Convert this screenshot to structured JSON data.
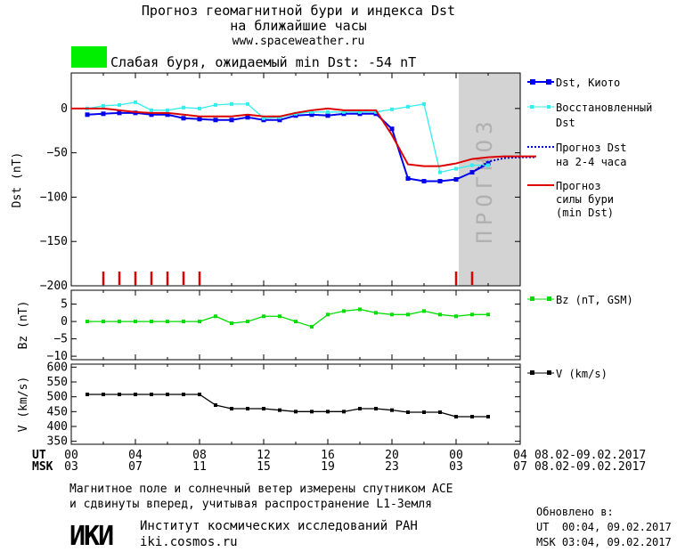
{
  "header": {
    "title_line1": "Прогноз геомагнитной бури и индекса Dst",
    "title_line2": "на ближайшие часы",
    "url": "www.spaceweather.ru",
    "status_text": "Слабая буря, ожидаемый min Dst: -54 nT",
    "status_color": "#00ee00"
  },
  "forecast_band_label": "ПРОГНОЗ",
  "chart_data": [
    {
      "type": "line",
      "ylabel": "Dst (nT)",
      "ylim": [
        -200,
        40
      ],
      "yticks": [
        0,
        -50,
        -100,
        -150,
        -200
      ],
      "series": [
        {
          "name": "Dst, Киото",
          "color": "#0000ee",
          "x": [
            0,
            1,
            2,
            3,
            4,
            5,
            6,
            7,
            8,
            9,
            10,
            11,
            12,
            13,
            14,
            15,
            16,
            17,
            18,
            19,
            20,
            21,
            22,
            23,
            24,
            25
          ],
          "y": [
            -7,
            -6,
            -5,
            -5,
            -7,
            -7,
            -11,
            -12,
            -13,
            -13,
            -10,
            -13,
            -13,
            -8,
            -7,
            -8,
            -6,
            -6,
            -6,
            -23,
            -79,
            -82,
            -82,
            -80,
            -72,
            -62
          ]
        },
        {
          "name": "Восстановленный Dst",
          "color": "#33eeee",
          "x": [
            0,
            1,
            2,
            3,
            4,
            5,
            6,
            7,
            8,
            9,
            10,
            11,
            12,
            13,
            14,
            15,
            16,
            17,
            18,
            19,
            20,
            21,
            22,
            23,
            24,
            25
          ],
          "y": [
            0,
            3,
            4,
            7,
            -2,
            -2,
            1,
            0,
            4,
            5,
            5,
            -11,
            -10,
            -6,
            -4,
            -4,
            -4,
            -4,
            -4,
            -1,
            2,
            5,
            -72,
            -68,
            -64,
            -64
          ]
        },
        {
          "name": "Прогноз Dst на 2-4 часа",
          "color": "#0000cc",
          "dashed": true,
          "x": [
            24,
            25,
            26,
            27,
            28
          ],
          "y": [
            -72,
            -60,
            -56,
            -55,
            -55
          ]
        },
        {
          "name": "Прогноз силы бури (min Dst)",
          "color": "#dd0000",
          "x": [
            -1,
            0,
            1,
            2,
            3,
            4,
            5,
            6,
            7,
            8,
            9,
            10,
            11,
            12,
            13,
            14,
            15,
            16,
            17,
            18,
            19,
            20,
            21,
            22,
            23,
            24,
            25,
            26,
            27,
            28
          ],
          "y": [
            0,
            0,
            0,
            -2,
            -4,
            -5,
            -5,
            -7,
            -9,
            -9,
            -9,
            -7,
            -9,
            -9,
            -5,
            -2,
            0,
            -2,
            -2,
            -2,
            -30,
            -63,
            -65,
            -65,
            -62,
            -57,
            -55,
            -54,
            -54,
            -54
          ]
        }
      ],
      "markers_x": [
        1,
        2,
        3,
        4,
        5,
        6,
        7,
        23,
        24
      ]
    },
    {
      "type": "line",
      "ylabel": "Bz (nT)",
      "ylim": [
        -11,
        9
      ],
      "yticks": [
        5,
        0,
        -5,
        -10
      ],
      "series": [
        {
          "name": "Bz (nT, GSM)",
          "color": "#00dd00",
          "x": [
            0,
            1,
            2,
            3,
            4,
            5,
            6,
            7,
            8,
            9,
            10,
            11,
            12,
            13,
            14,
            15,
            16,
            17,
            18,
            19,
            20,
            21,
            22,
            23,
            24,
            25
          ],
          "y": [
            0,
            0,
            0,
            0,
            0,
            0,
            0,
            0,
            1.5,
            -0.5,
            0,
            1.5,
            1.5,
            0,
            -1.5,
            2,
            3,
            3.5,
            2.5,
            2,
            2,
            3,
            2,
            1.5,
            2,
            2
          ]
        }
      ]
    },
    {
      "type": "line",
      "ylabel": "V (km/s)",
      "ylim": [
        340,
        610
      ],
      "yticks": [
        600,
        550,
        500,
        450,
        400,
        350
      ],
      "series": [
        {
          "name": "V (km/s)",
          "color": "#000000",
          "x": [
            0,
            1,
            2,
            3,
            4,
            5,
            6,
            7,
            8,
            9,
            10,
            11,
            12,
            13,
            14,
            15,
            16,
            17,
            18,
            19,
            20,
            21,
            22,
            23,
            24,
            25
          ],
          "y": [
            508,
            508,
            508,
            508,
            508,
            508,
            508,
            508,
            472,
            460,
            460,
            460,
            455,
            450,
            450,
            450,
            450,
            460,
            460,
            455,
            448,
            448,
            448,
            433,
            433,
            433
          ]
        }
      ]
    }
  ],
  "x_axis": {
    "ut_label": "UT",
    "msk_label": "MSK",
    "ut_ticks": [
      "00",
      "04",
      "08",
      "12",
      "16",
      "20",
      "00",
      "04"
    ],
    "msk_ticks": [
      "03",
      "07",
      "11",
      "15",
      "19",
      "23",
      "03",
      "07"
    ],
    "ut_minor": [
      "02",
      "06",
      "10",
      "14",
      "18",
      "22",
      "02"
    ],
    "date_range_ut": "08.02-09.02.2017",
    "date_range_msk": "08.02-09.02.2017"
  },
  "legend": {
    "dst_kyoto": "Dst, Киото",
    "restored_1": "Восстановленный",
    "restored_2": "Dst",
    "forecast_1": "Прогноз Dst",
    "forecast_2": "на 2-4 часа",
    "storm_1": "Прогноз",
    "storm_2": "силы бури",
    "storm_3": "(min Dst)",
    "bz": "Bz (nT, GSM)",
    "v": "V (km/s)"
  },
  "footer": {
    "note_line1": "Магнитное поле и солнечный ветер измерены спутником ACE",
    "note_line2": "и сдвинуты вперед, учитывая распространение L1-Земля",
    "logo_text": "ИКИ",
    "institute": "Институт космических исследований РАН",
    "site": "iki.cosmos.ru",
    "updated_label": "Обновлено в:",
    "updated_ut": "UT  00:04, 09.02.2017",
    "updated_msk": "MSK 03:04, 09.02.2017"
  }
}
